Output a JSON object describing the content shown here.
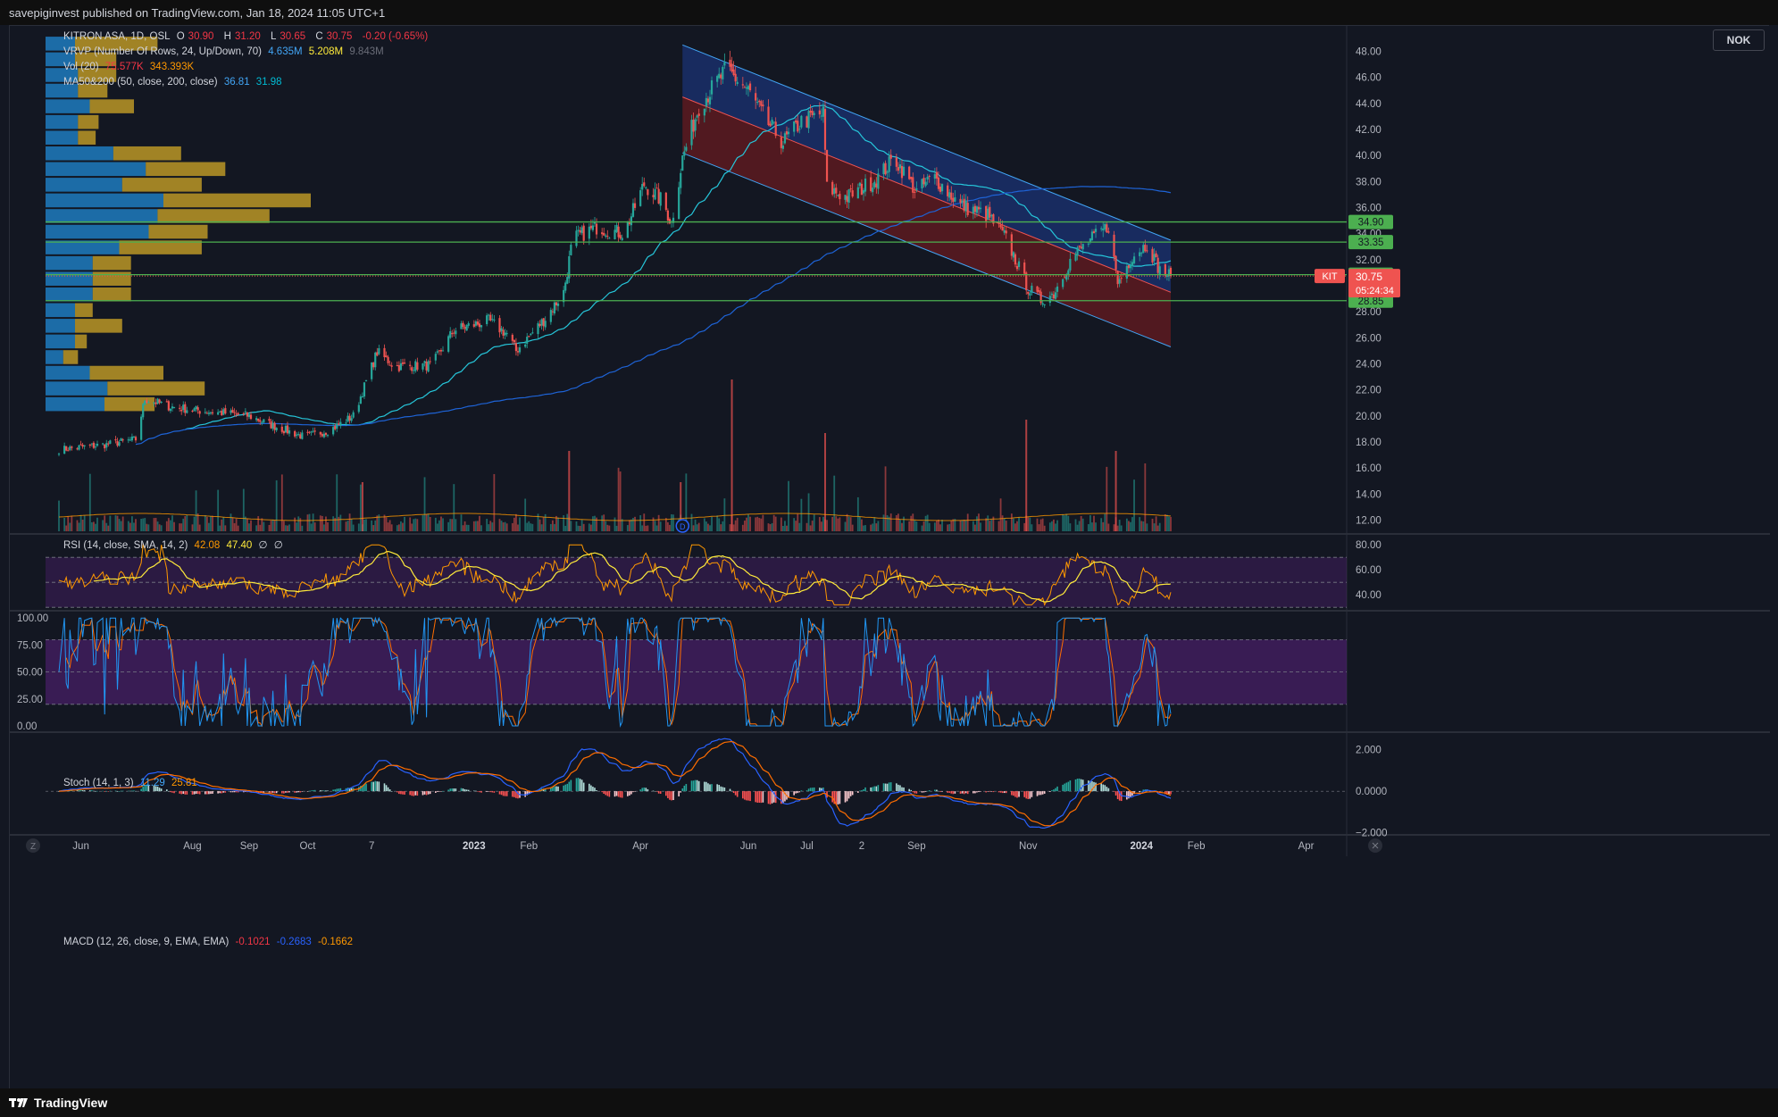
{
  "header": {
    "published": "savepiginvest published on TradingView.com, Jan 18, 2024 11:05 UTC+1"
  },
  "footer": {
    "brand": "TradingView"
  },
  "currency": "NOK",
  "legend": {
    "symbol": "KITRON ASA, 1D, OSL",
    "o_label": "O",
    "o_value": "30.90",
    "h_label": "H",
    "h_value": "31.20",
    "l_label": "L",
    "l_value": "30.65",
    "c_label": "C",
    "c_value": "30.75",
    "change": "-0.20 (-0.65%)",
    "vrvp_label": "VRVP (Number Of Rows, 24, Up/Down, 70)",
    "vrvp_up": "4.635M",
    "vrvp_down": "5.208M",
    "vrvp_total": "9.843M",
    "vol_label": "Vol (20)",
    "vol_value": "75.577K",
    "vol_ma": "343.393K",
    "ma_label": "MA50&200 (50, close, 200, close)",
    "ma50": "36.81",
    "ma200": "31.98",
    "rsi_label": "RSI (14, close, SMA, 14, 2)",
    "rsi_value": "42.08",
    "rsi_ma": "47.40",
    "rsi_na1": "∅",
    "rsi_na2": "∅",
    "stoch_label": "Stoch (14, 1, 3)",
    "stoch_k": "11.29",
    "stoch_d": "25.81",
    "macd_label": "MACD (12, 26, close, 9, EMA, EMA)",
    "macd_hist": "-0.1021",
    "macd_line": "-0.2683",
    "macd_signal": "-0.1662"
  },
  "chart_data": [
    {
      "type": "candlestick",
      "symbol": "KITRON ASA",
      "interval": "1D",
      "exchange": "OSL",
      "currency": "NOK",
      "ylim": [
        11,
        49
      ],
      "y_ticks": [
        12,
        14,
        16,
        18,
        20,
        22,
        24,
        26,
        28,
        30,
        32,
        34,
        36,
        38,
        40,
        42,
        44,
        46,
        48
      ],
      "x_ticks": [
        "Jun",
        "Aug",
        "Sep",
        "Oct",
        "7",
        "2023",
        "Feb",
        "Apr",
        "Jun",
        "Jul",
        "2",
        "Sep",
        "Nov",
        "2024",
        "Feb",
        "Apr"
      ],
      "close_path": [
        [
          "2022-05-20",
          17.4
        ],
        [
          "2022-06-01",
          17.6
        ],
        [
          "2022-06-15",
          17.8
        ],
        [
          "2022-07-01",
          18.2
        ],
        [
          "2022-07-06",
          21.3
        ],
        [
          "2022-07-20",
          20.7
        ],
        [
          "2022-08-05",
          20.4
        ],
        [
          "2022-08-20",
          20.2
        ],
        [
          "2022-09-01",
          20.0
        ],
        [
          "2022-09-15",
          19.2
        ],
        [
          "2022-10-01",
          18.4
        ],
        [
          "2022-10-15",
          18.9
        ],
        [
          "2022-10-28",
          20.0
        ],
        [
          "2022-11-05",
          23.0
        ],
        [
          "2022-11-10",
          24.9
        ],
        [
          "2022-11-20",
          23.8
        ],
        [
          "2022-12-10",
          23.9
        ],
        [
          "2022-12-22",
          26.6
        ],
        [
          "2023-01-10",
          27.3
        ],
        [
          "2023-01-20",
          26.3
        ],
        [
          "2023-01-25",
          25.0
        ],
        [
          "2023-02-10",
          27.5
        ],
        [
          "2023-02-20",
          29.5
        ],
        [
          "2023-02-25",
          33.6
        ],
        [
          "2023-03-10",
          34.5
        ],
        [
          "2023-03-25",
          34.0
        ],
        [
          "2023-04-05",
          37.8
        ],
        [
          "2023-04-15",
          36.5
        ],
        [
          "2023-04-20",
          34.8
        ],
        [
          "2023-04-26",
          39.8
        ],
        [
          "2023-05-05",
          43.8
        ],
        [
          "2023-05-20",
          46.6
        ],
        [
          "2023-06-01",
          45.0
        ],
        [
          "2023-06-10",
          42.8
        ],
        [
          "2023-06-20",
          41.0
        ],
        [
          "2023-06-30",
          42.6
        ],
        [
          "2023-07-12",
          43.2
        ],
        [
          "2023-07-14",
          37.5
        ],
        [
          "2023-07-25",
          36.8
        ],
        [
          "2023-08-10",
          38.2
        ],
        [
          "2023-08-20",
          39.8
        ],
        [
          "2023-09-01",
          37.2
        ],
        [
          "2023-09-10",
          38.4
        ],
        [
          "2023-09-25",
          36.2
        ],
        [
          "2023-10-10",
          35.4
        ],
        [
          "2023-10-20",
          33.6
        ],
        [
          "2023-11-01",
          29.8
        ],
        [
          "2023-11-08",
          28.9
        ],
        [
          "2023-11-15",
          29.4
        ],
        [
          "2023-11-25",
          32.2
        ],
        [
          "2023-12-05",
          33.5
        ],
        [
          "2023-12-15",
          34.6
        ],
        [
          "2023-12-20",
          30.2
        ],
        [
          "2023-12-28",
          32.3
        ],
        [
          "2024-01-05",
          33.2
        ],
        [
          "2024-01-12",
          31.2
        ],
        [
          "2024-01-18",
          30.75
        ]
      ],
      "moving_averages": [
        {
          "name": "MA50",
          "last": 36.81
        },
        {
          "name": "MA200",
          "last": 31.98
        }
      ],
      "horizontal_levels": [
        34.9,
        33.35,
        30.85,
        28.85
      ],
      "price_label": {
        "ticker": "KIT",
        "value": "30.75",
        "countdown": "05:24:34"
      },
      "regression_channel": {
        "start": "2023-04-26",
        "end": "2024-01-18",
        "upper_start": 48.5,
        "upper_end": 33.5,
        "mid_start": 44.5,
        "mid_end": 29.5,
        "lower_start": 40.2,
        "lower_end": 25.3
      },
      "volume_profile_rows": [
        {
          "price": 48.5,
          "up": 0.1,
          "down": 0.28
        },
        {
          "price": 47.3,
          "up": 0.1,
          "down": 0.14
        },
        {
          "price": 46.1,
          "up": 0.11,
          "down": 0.13
        },
        {
          "price": 44.9,
          "up": 0.11,
          "down": 0.1
        },
        {
          "price": 43.7,
          "up": 0.15,
          "down": 0.15
        },
        {
          "price": 42.5,
          "up": 0.11,
          "down": 0.07
        },
        {
          "price": 41.3,
          "up": 0.11,
          "down": 0.06
        },
        {
          "price": 40.1,
          "up": 0.23,
          "down": 0.23
        },
        {
          "price": 38.9,
          "up": 0.34,
          "down": 0.27
        },
        {
          "price": 37.7,
          "up": 0.26,
          "down": 0.27
        },
        {
          "price": 36.5,
          "up": 0.4,
          "down": 0.5
        },
        {
          "price": 35.3,
          "up": 0.38,
          "down": 0.38
        },
        {
          "price": 34.1,
          "up": 0.35,
          "down": 0.2
        },
        {
          "price": 32.9,
          "up": 0.25,
          "down": 0.28
        },
        {
          "price": 31.7,
          "up": 0.16,
          "down": 0.13
        },
        {
          "price": 30.5,
          "up": 0.16,
          "down": 0.13
        },
        {
          "price": 29.3,
          "up": 0.16,
          "down": 0.13
        },
        {
          "price": 28.1,
          "up": 0.1,
          "down": 0.06
        },
        {
          "price": 26.9,
          "up": 0.1,
          "down": 0.16
        },
        {
          "price": 25.7,
          "up": 0.1,
          "down": 0.04
        },
        {
          "price": 24.5,
          "up": 0.06,
          "down": 0.05
        },
        {
          "price": 23.3,
          "up": 0.15,
          "down": 0.25
        },
        {
          "price": 22.1,
          "up": 0.21,
          "down": 0.33
        },
        {
          "price": 20.9,
          "up": 0.2,
          "down": 0.17
        }
      ]
    },
    {
      "type": "line",
      "name": "RSI",
      "ylim": [
        28,
        88
      ],
      "y_ticks": [
        40,
        60,
        80
      ],
      "bands": [
        30,
        50,
        70
      ],
      "last_rsi": 42.08,
      "last_ma": 47.4
    },
    {
      "type": "line",
      "name": "Stoch",
      "ylim": [
        -5,
        106
      ],
      "y_ticks": [
        0,
        25,
        50,
        75,
        100
      ],
      "bands": [
        20,
        80
      ],
      "last_k": 11.29,
      "last_d": 25.81
    },
    {
      "type": "line",
      "name": "MACD",
      "ylim": [
        -2.1,
        2.8
      ],
      "y_ticks": [
        -2,
        0,
        2
      ],
      "y_tick_labels": [
        "−2.000",
        "0.0000",
        "2.000"
      ],
      "last_hist": -0.1021,
      "last_macd": -0.2683,
      "last_signal": -0.1662
    }
  ],
  "colors": {
    "up": "#26a69a",
    "down": "#ef5350",
    "ma50": "#26c6da",
    "ma200": "#1e63d6",
    "level": "#4caf50",
    "rsi": "#ff9800",
    "rsi_ma": "#ffeb3b",
    "stoch_k": "#2196f3",
    "stoch_d": "#ff6d00",
    "vp_up": "#1f7fc4",
    "vp_down": "#c9a227",
    "band": "#4a1f6a",
    "macd": "#2962ff",
    "signal": "#ff6d00"
  }
}
